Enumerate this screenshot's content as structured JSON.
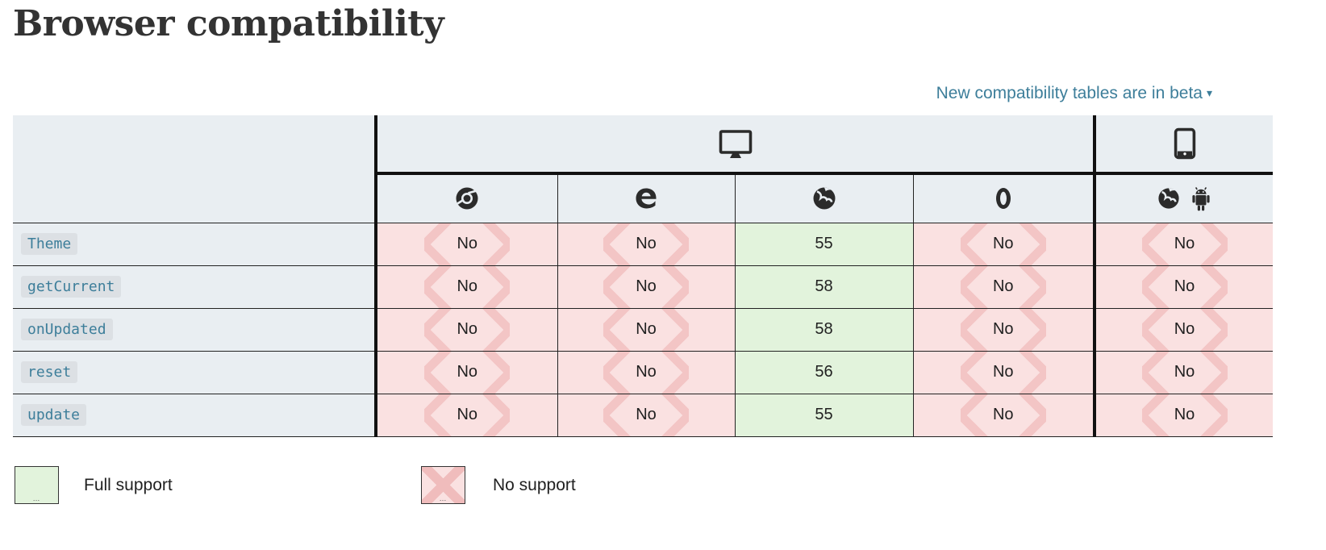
{
  "page": {
    "title": "Browser compatibility",
    "beta_link_label": "New compatibility tables are in beta",
    "beta_caret": "▾"
  },
  "table": {
    "platform_headers": [
      {
        "name": "desktop",
        "icon": "desktop-icon",
        "colspan": 4
      },
      {
        "name": "mobile",
        "icon": "mobile-icon",
        "colspan": 1
      }
    ],
    "browser_headers": [
      {
        "name": "Chrome",
        "icon": "chrome-icon"
      },
      {
        "name": "Edge",
        "icon": "edge-icon"
      },
      {
        "name": "Firefox",
        "icon": "firefox-icon"
      },
      {
        "name": "Opera",
        "icon": "opera-icon"
      },
      {
        "name": "Firefox for Android",
        "icon": "firefox-icon+android-icon"
      }
    ],
    "rows": [
      {
        "feature": "Theme",
        "cells": [
          {
            "support": "no",
            "text": "No"
          },
          {
            "support": "no",
            "text": "No"
          },
          {
            "support": "full",
            "text": "55"
          },
          {
            "support": "no",
            "text": "No"
          },
          {
            "support": "no",
            "text": "No"
          }
        ]
      },
      {
        "feature": "getCurrent",
        "cells": [
          {
            "support": "no",
            "text": "No"
          },
          {
            "support": "no",
            "text": "No"
          },
          {
            "support": "full",
            "text": "58"
          },
          {
            "support": "no",
            "text": "No"
          },
          {
            "support": "no",
            "text": "No"
          }
        ]
      },
      {
        "feature": "onUpdated",
        "cells": [
          {
            "support": "no",
            "text": "No"
          },
          {
            "support": "no",
            "text": "No"
          },
          {
            "support": "full",
            "text": "58"
          },
          {
            "support": "no",
            "text": "No"
          },
          {
            "support": "no",
            "text": "No"
          }
        ]
      },
      {
        "feature": "reset",
        "cells": [
          {
            "support": "no",
            "text": "No"
          },
          {
            "support": "no",
            "text": "No"
          },
          {
            "support": "full",
            "text": "56"
          },
          {
            "support": "no",
            "text": "No"
          },
          {
            "support": "no",
            "text": "No"
          }
        ]
      },
      {
        "feature": "update",
        "cells": [
          {
            "support": "no",
            "text": "No"
          },
          {
            "support": "no",
            "text": "No"
          },
          {
            "support": "full",
            "text": "55"
          },
          {
            "support": "no",
            "text": "No"
          },
          {
            "support": "no",
            "text": "No"
          }
        ]
      }
    ]
  },
  "legend": {
    "full_label": "Full support",
    "no_label": "No support",
    "swatch_dots": "…"
  },
  "colors": {
    "link_blue": "#3d7e9a",
    "header_bg": "#e9eef2",
    "full_support_bg": "#e2f3dc",
    "no_support_bg": "#fae1e1",
    "x_stripe": "#f3c5c5",
    "border_thin": "#222222",
    "border_thick": "#111111",
    "title_text": "#333333"
  }
}
